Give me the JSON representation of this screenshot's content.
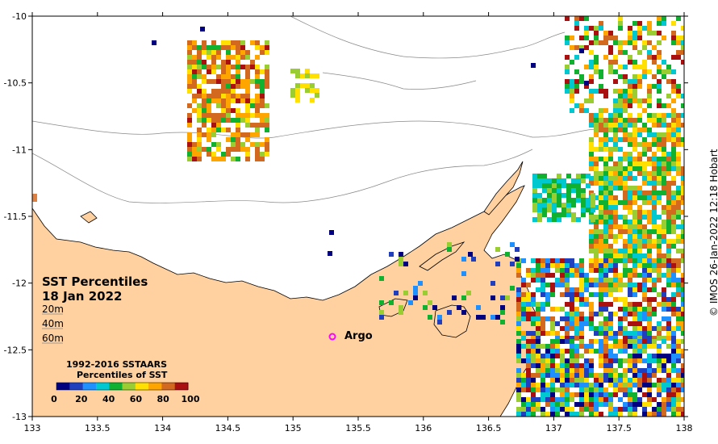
{
  "title": "SST Percentiles",
  "date": "18 Jan 2022",
  "credit": "© IMOS 26-Jan-2022 12:18 Hobart",
  "depth_contours": [
    "20m",
    "40m",
    "60m"
  ],
  "argo_label": "Argo",
  "legend": {
    "title_line1": "1992-2016 SSTAARS",
    "title_line2": "Percentiles of SST",
    "colors": [
      "#000080",
      "#1f3fbf",
      "#1e90ff",
      "#00c8d0",
      "#10b030",
      "#9acd32",
      "#ffe000",
      "#ffa500",
      "#d2691e",
      "#aa1010"
    ],
    "tick_labels": [
      "0",
      "20",
      "40",
      "60",
      "80",
      "100"
    ]
  },
  "axes": {
    "x_ticks": [
      "133",
      "133.5",
      "134",
      "134.5",
      "135",
      "135.5",
      "136",
      "136.5",
      "137",
      "137.5",
      "138"
    ],
    "y_ticks": [
      "-10",
      "-10.5",
      "-11",
      "-11.5",
      "-12",
      "-12.5",
      "-13"
    ]
  },
  "colors": {
    "land": "#ffd0a0",
    "ocean": "#ffffff",
    "argo_marker": "#ff00ff"
  }
}
